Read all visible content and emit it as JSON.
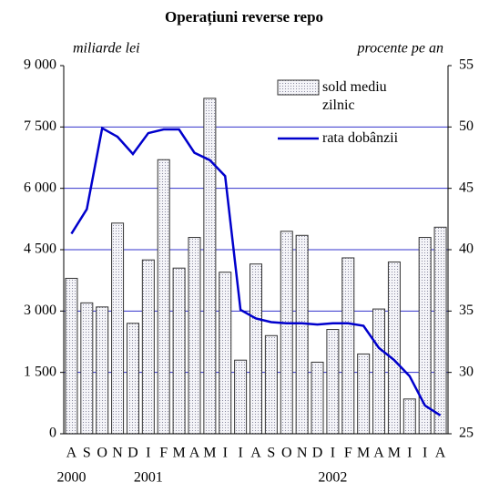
{
  "chart_data": {
    "type": "bar_line",
    "title": "Operațiuni reverse repo",
    "y_axis_label": "miliarde lei",
    "y2_axis_label": "procente pe an",
    "categories": [
      "A",
      "S",
      "O",
      "N",
      "D",
      "I",
      "F",
      "M",
      "A",
      "M",
      "I",
      "I",
      "A",
      "S",
      "O",
      "N",
      "D",
      "I",
      "F",
      "M",
      "A",
      "M",
      "I",
      "I",
      "A"
    ],
    "year_labels": [
      "2000",
      "2001",
      "2002"
    ],
    "series": [
      {
        "name": "sold mediu zilnic",
        "type": "bar",
        "axis": "y",
        "color": "#333333",
        "values": [
          3800,
          3200,
          3100,
          5150,
          2700,
          4250,
          6700,
          4050,
          4800,
          8200,
          3950,
          1800,
          4150,
          2400,
          4950,
          4850,
          1750,
          2550,
          4300,
          1950,
          3050,
          4200,
          850,
          4800,
          5050
        ]
      },
      {
        "name": "rata dobânzii",
        "type": "line",
        "axis": "y2",
        "color": "#0000cc",
        "values": [
          41.3,
          43.3,
          49.9,
          49.2,
          47.8,
          49.5,
          49.8,
          49.8,
          47.9,
          47.3,
          46.0,
          35.1,
          34.4,
          34.1,
          34.0,
          34.0,
          33.9,
          34.0,
          34.0,
          33.8,
          32.0,
          31.0,
          29.7,
          27.3,
          26.5
        ]
      }
    ],
    "ylim": [
      0,
      9000
    ],
    "yticks": [
      {
        "value": 0,
        "label": "0"
      },
      {
        "value": 1500,
        "label": "1 500"
      },
      {
        "value": 3000,
        "label": "3 000"
      },
      {
        "value": 4500,
        "label": "4 500"
      },
      {
        "value": 6000,
        "label": "6 000"
      },
      {
        "value": 7500,
        "label": "7 500"
      },
      {
        "value": 9000,
        "label": "9 000"
      }
    ],
    "y2lim": [
      25,
      55
    ],
    "y2ticks": [
      25,
      30,
      35,
      40,
      45,
      50,
      55
    ],
    "grid": true,
    "grid_color": "#3333cc",
    "legend": "upper right"
  }
}
